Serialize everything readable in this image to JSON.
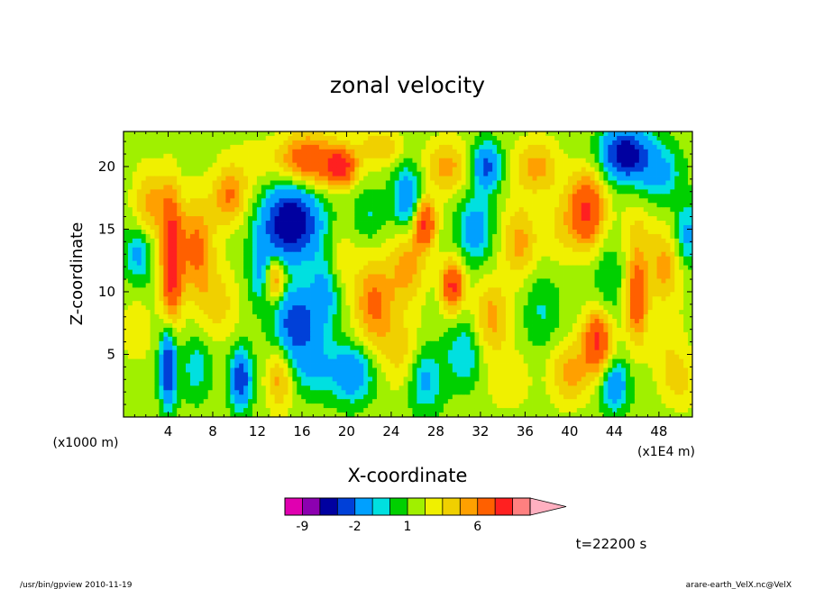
{
  "chart_data": {
    "type": "heatmap",
    "title": "zonal velocity",
    "xlabel": "X-coordinate",
    "ylabel": "Z-coordinate",
    "x_unit": "(x1E4 m)",
    "y_unit": "(x1000 m)",
    "xlim": [
      0,
      51
    ],
    "ylim": [
      0,
      22.8
    ],
    "x_ticks": [
      4,
      8,
      12,
      16,
      20,
      24,
      28,
      32,
      36,
      40,
      44,
      48
    ],
    "y_ticks": [
      5,
      10,
      15,
      20
    ],
    "colorbar": {
      "levels": [
        -12,
        -9,
        -6,
        -4,
        -2,
        -1,
        0,
        1,
        2,
        3,
        4,
        6,
        8,
        10
      ],
      "colors": [
        "#e000b0",
        "#8c00b0",
        "#0000a0",
        "#0040d8",
        "#00a0ff",
        "#00e0e0",
        "#00d000",
        "#a0f000",
        "#f0f000",
        "#f0d000",
        "#ffa000",
        "#ff6000",
        "#ff2020",
        "#ff8080",
        "#ffb0c0"
      ],
      "tick_labels": [
        {
          "value": -9,
          "label": "-9"
        },
        {
          "value": -2,
          "label": "-2"
        },
        {
          "value": 1,
          "label": "1"
        },
        {
          "value": 6,
          "label": "6"
        }
      ]
    },
    "blobs": [
      {
        "x": 4.3,
        "z": 12.5,
        "v": 7,
        "rx": 0.9,
        "rz": 5
      },
      {
        "x": 4.0,
        "z": 4,
        "v": -7,
        "rx": 0.7,
        "rz": 3
      },
      {
        "x": 2.5,
        "z": 17,
        "v": 3,
        "rx": 1.6,
        "rz": 3
      },
      {
        "x": 1.3,
        "z": 13,
        "v": -3,
        "rx": 1.2,
        "rz": 2.2
      },
      {
        "x": 1.2,
        "z": 7,
        "v": 1.2,
        "rx": 1.6,
        "rz": 3
      },
      {
        "x": 6.5,
        "z": 13.5,
        "v": 4,
        "rx": 1.6,
        "rz": 4
      },
      {
        "x": 6.5,
        "z": 4,
        "v": -2,
        "rx": 1.3,
        "rz": 2.5
      },
      {
        "x": 8.5,
        "z": 9,
        "v": 2,
        "rx": 1.8,
        "rz": 3
      },
      {
        "x": 9.5,
        "z": 17.5,
        "v": 3.5,
        "rx": 1.5,
        "rz": 2.2
      },
      {
        "x": 10.5,
        "z": 3,
        "v": -6,
        "rx": 0.9,
        "rz": 2.2
      },
      {
        "x": 11,
        "z": 20,
        "v": 1,
        "rx": 2.5,
        "rz": 2.5
      },
      {
        "x": 12.5,
        "z": 11.5,
        "v": -3,
        "rx": 1.2,
        "rz": 2.5
      },
      {
        "x": 13.5,
        "z": 11,
        "v": 5,
        "rx": 0.9,
        "rz": 1.8
      },
      {
        "x": 15,
        "z": 15.5,
        "v": -9,
        "rx": 2.4,
        "rz": 2.8
      },
      {
        "x": 15.5,
        "z": 7.5,
        "v": -6,
        "rx": 1.8,
        "rz": 2.6
      },
      {
        "x": 16.5,
        "z": 20.5,
        "v": 5,
        "rx": 2.6,
        "rz": 2.2
      },
      {
        "x": 14,
        "z": 3,
        "v": 3,
        "rx": 1.2,
        "rz": 2.5
      },
      {
        "x": 18,
        "z": 10,
        "v": -3,
        "rx": 1.4,
        "rz": 3
      },
      {
        "x": 17,
        "z": 4,
        "v": -2.5,
        "rx": 2,
        "rz": 2.2
      },
      {
        "x": 19.5,
        "z": 20,
        "v": 6,
        "rx": 1.4,
        "rz": 1.5
      },
      {
        "x": 19.5,
        "z": 12.5,
        "v": 1.5,
        "rx": 1.5,
        "rz": 2.5
      },
      {
        "x": 20.5,
        "z": 3.5,
        "v": -4,
        "rx": 1.8,
        "rz": 2.2
      },
      {
        "x": 22.5,
        "z": 9,
        "v": 4,
        "rx": 1.8,
        "rz": 3.5
      },
      {
        "x": 22,
        "z": 16,
        "v": -1.5,
        "rx": 1.4,
        "rz": 2
      },
      {
        "x": 23,
        "z": 21.5,
        "v": 2.5,
        "rx": 2,
        "rz": 1.5
      },
      {
        "x": 25.5,
        "z": 17.5,
        "v": -4,
        "rx": 1.3,
        "rz": 2.5
      },
      {
        "x": 25.5,
        "z": 12,
        "v": 3,
        "rx": 1.6,
        "rz": 3
      },
      {
        "x": 25,
        "z": 5,
        "v": 2,
        "rx": 1.8,
        "rz": 3
      },
      {
        "x": 27,
        "z": 3,
        "v": -3,
        "rx": 1.5,
        "rz": 2.5
      },
      {
        "x": 27,
        "z": 15.5,
        "v": 6,
        "rx": 1,
        "rz": 2
      },
      {
        "x": 29.5,
        "z": 10.5,
        "v": 6,
        "rx": 1,
        "rz": 2
      },
      {
        "x": 29,
        "z": 20,
        "v": 3,
        "rx": 2,
        "rz": 2.2
      },
      {
        "x": 30.5,
        "z": 5,
        "v": -2.5,
        "rx": 1.5,
        "rz": 2.5
      },
      {
        "x": 31.5,
        "z": 15,
        "v": -3.5,
        "rx": 1.5,
        "rz": 2.5
      },
      {
        "x": 33,
        "z": 8,
        "v": 3,
        "rx": 1.6,
        "rz": 3
      },
      {
        "x": 32.5,
        "z": 20,
        "v": -5,
        "rx": 1.3,
        "rz": 1.8
      },
      {
        "x": 34.5,
        "z": 3,
        "v": 1.5,
        "rx": 2,
        "rz": 2.5
      },
      {
        "x": 35.5,
        "z": 14,
        "v": 3,
        "rx": 1.6,
        "rz": 3
      },
      {
        "x": 37,
        "z": 20,
        "v": 3,
        "rx": 2,
        "rz": 2.2
      },
      {
        "x": 37.5,
        "z": 8.5,
        "v": -1.5,
        "rx": 1.6,
        "rz": 3
      },
      {
        "x": 39,
        "z": 15,
        "v": 1.5,
        "rx": 1.5,
        "rz": 3
      },
      {
        "x": 40,
        "z": 3.5,
        "v": 3,
        "rx": 1.8,
        "rz": 2.5
      },
      {
        "x": 41.5,
        "z": 16.5,
        "v": 6,
        "rx": 1.6,
        "rz": 3
      },
      {
        "x": 42.5,
        "z": 6,
        "v": 6,
        "rx": 1.3,
        "rz": 2.5
      },
      {
        "x": 43.5,
        "z": 11,
        "v": -1.5,
        "rx": 1.3,
        "rz": 3
      },
      {
        "x": 44,
        "z": 2.5,
        "v": -4,
        "rx": 1.2,
        "rz": 2
      },
      {
        "x": 45,
        "z": 21,
        "v": -8,
        "rx": 2,
        "rz": 2
      },
      {
        "x": 46,
        "z": 9.5,
        "v": 5,
        "rx": 1,
        "rz": 3.5
      },
      {
        "x": 46,
        "z": 15,
        "v": 1.5,
        "rx": 1.5,
        "rz": 2.5
      },
      {
        "x": 48,
        "z": 19.5,
        "v": -3,
        "rx": 1.8,
        "rz": 2.2
      },
      {
        "x": 48.5,
        "z": 12,
        "v": 3,
        "rx": 1.6,
        "rz": 3
      },
      {
        "x": 49,
        "z": 5,
        "v": 1.5,
        "rx": 1.8,
        "rz": 3
      },
      {
        "x": 50.5,
        "z": 14.5,
        "v": -3,
        "rx": 1.1,
        "rz": 2.5
      },
      {
        "x": 50,
        "z": 2.5,
        "v": 1.5,
        "rx": 1.5,
        "rz": 2
      }
    ]
  },
  "time_label": "t=22200 s",
  "footer_left": "/usr/bin/gpview  2010-11-19",
  "footer_right": "arare-earth_VelX.nc@VelX"
}
